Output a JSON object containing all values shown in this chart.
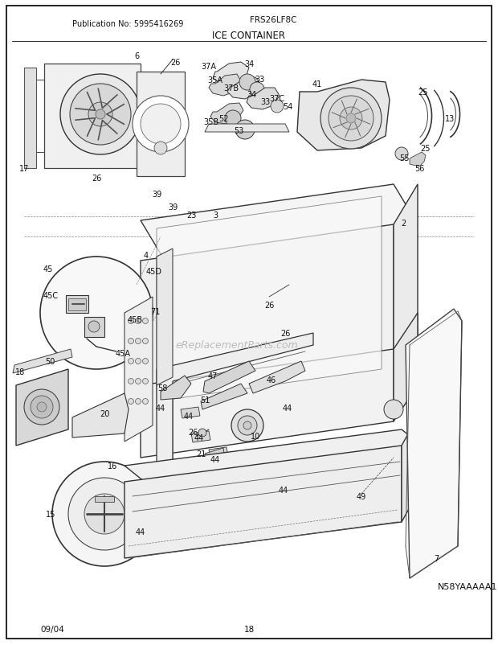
{
  "pub_no": "Publication No: 5995416269",
  "model": "FRS26LF8C",
  "title": "ICE CONTAINER",
  "diagram_code": "N58YAAAAA1",
  "footer_left": "09/04",
  "footer_center": "18",
  "bg_color": "#ffffff",
  "text_color": "#222222",
  "image_b64": ""
}
